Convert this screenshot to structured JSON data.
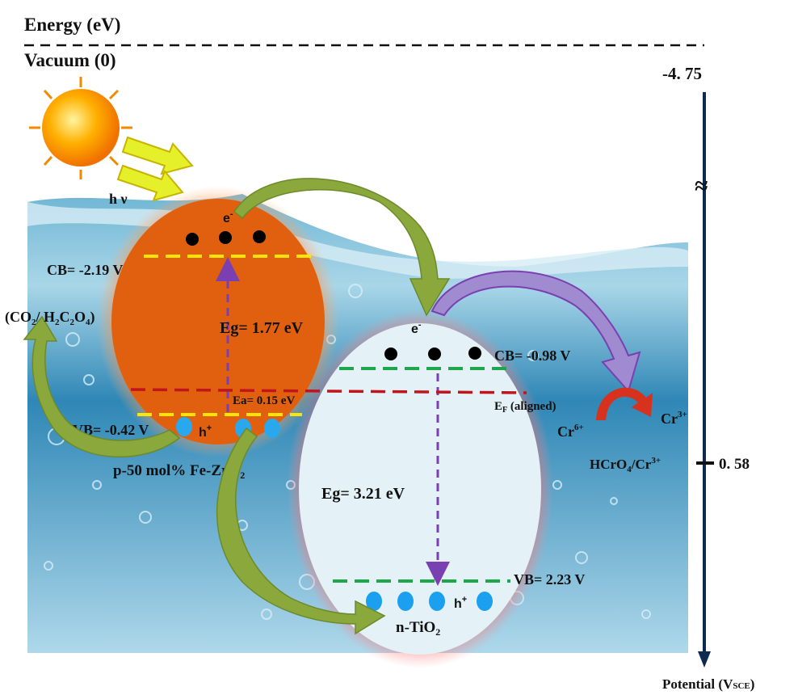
{
  "header": {
    "energy_label": "Energy (eV)",
    "vacuum_label": "Vacuum (0)"
  },
  "potential_axis": {
    "top_value": "-4. 75",
    "break_symbol": "≈",
    "lower_value": "0. 58",
    "lower_couple_main": "HCrO",
    "lower_couple_sub": "4",
    "lower_couple_sep": "/Cr",
    "lower_couple_sup": "3+",
    "axis_title": "Potential (V",
    "axis_title_sub": "SCE",
    "axis_title_end": ")"
  },
  "light": {
    "label": "h ν"
  },
  "left_particle": {
    "name": "p-50 mol% Fe-ZrO",
    "name_sub": "2",
    "cb_label": "CB= -2.19 V",
    "vb_label": "VB= -0.42 V",
    "eg_label": "Eg= 1.77 eV",
    "ea_label": "Ea= 0.15 eV",
    "electron": "e",
    "electron_sup": "-",
    "hole": "h",
    "hole_sup": "+",
    "fill_color": "#e0600f",
    "band_color": "#ffe600",
    "hole_color": "#2aa8ee"
  },
  "right_particle": {
    "name": "n-TiO",
    "name_sub": "2",
    "cb_label": "CB= -0.98 V",
    "vb_label": "VB= 2.23 V",
    "eg_label": "Eg= 3.21 eV",
    "electron": "e",
    "electron_sup": "-",
    "hole": "h",
    "hole_sup": "+",
    "fill_color": "#e4f1f6",
    "band_color": "#1ea64a",
    "hole_color": "#1aa0ee"
  },
  "fermi": {
    "label_main": "E",
    "label_sub": "F",
    "label_rest": " (aligned)",
    "color": "#c0161b"
  },
  "oxidation": {
    "label_open": "(CO",
    "label_sub1": "2",
    "label_mid": "/ H",
    "label_sub2": "2",
    "label_c": "C",
    "label_sub3": "2",
    "label_o": "O",
    "label_sub4": "4",
    "label_close": ")"
  },
  "reduction": {
    "from_main": "Cr",
    "from_sup": "6+",
    "to_main": "Cr",
    "to_sup": "3+"
  },
  "colors": {
    "transfer_arrow": "#8aa83c",
    "cr_arrow": "#a08ad0",
    "water": "#2f87b6",
    "axis": "#0d2a52"
  }
}
